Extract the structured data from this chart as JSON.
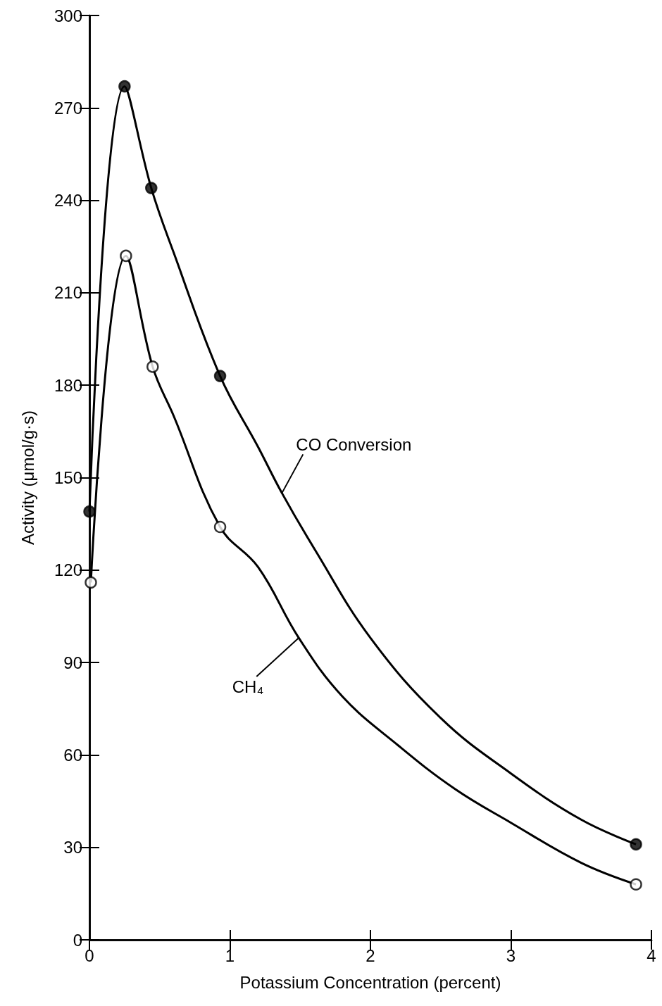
{
  "chart_data": {
    "type": "line",
    "xlabel": "Potassium Concentration (percent)",
    "ylabel": "Activity (μmol/g·s)",
    "xlim": [
      0,
      4
    ],
    "xticks": [
      0,
      1,
      2,
      3,
      4
    ],
    "ylim": [
      0,
      300
    ],
    "yticks": [
      0,
      30,
      60,
      90,
      120,
      150,
      180,
      210,
      240,
      270,
      300
    ],
    "grid": false,
    "line_style": "solid",
    "series": [
      {
        "color": "#000000",
        "marker": "none",
        "x": [
          0,
          0.25,
          0.44,
          0.6,
          0.93,
          1.2,
          1.37,
          1.6,
          2.0,
          2.5,
          3.0,
          3.5,
          3.89
        ],
        "values": [
          139,
          277,
          244,
          223,
          183,
          160,
          145,
          127,
          98,
          72,
          54,
          39,
          31
        ]
      },
      {
        "color": "#000000",
        "marker": "none",
        "x": [
          0.01,
          0.26,
          0.45,
          0.6,
          0.93,
          1.2,
          1.49,
          1.8,
          2.2,
          2.6,
          3.0,
          3.5,
          3.89
        ],
        "values": [
          116,
          222,
          186,
          170,
          134,
          121,
          98,
          79,
          63,
          49,
          38,
          25,
          18
        ]
      },
      {
        "type": "scatter",
        "color": "#000000",
        "marker": "circle",
        "x": [
          0,
          0.25,
          0.44,
          0.93,
          3.89
        ],
        "values": [
          139,
          277,
          244,
          183,
          31
        ]
      },
      {
        "type": "scatter",
        "color": "#ffffff",
        "marker": "circle",
        "x": [
          0.01,
          0.26,
          0.45,
          0.93,
          3.89
        ],
        "values": [
          116,
          222,
          186,
          134,
          18
        ]
      }
    ],
    "annotations": [
      {
        "text": "CO Conversion",
        "x": 1.37,
        "y": 145
      },
      {
        "text": "CH₄",
        "x": 1.49,
        "y": 98
      }
    ]
  }
}
